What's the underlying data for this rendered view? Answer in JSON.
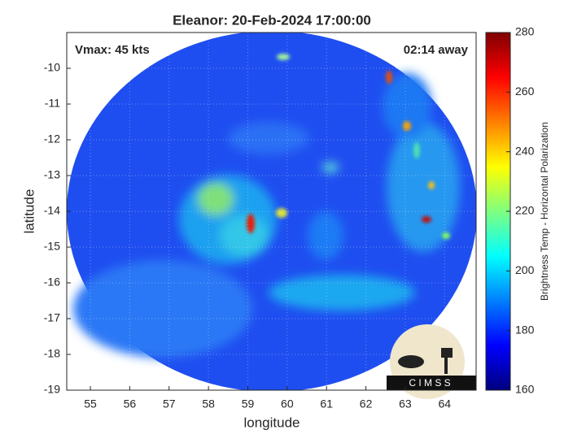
{
  "chart_data": {
    "type": "heatmap",
    "title": "Eleanor: 20-Feb-2024 17:00:00",
    "annotations": [
      "Vmax: 45 kts",
      "02:14 away"
    ],
    "x_label": "longitude",
    "y_label": "latitude",
    "xlim": [
      54.4,
      64.8
    ],
    "xticks": [
      55,
      56,
      57,
      58,
      59,
      60,
      61,
      62,
      63,
      64
    ],
    "ylim": [
      -19,
      -9
    ],
    "yticks": [
      -19,
      -18,
      -17,
      -16,
      -15,
      -14,
      -13,
      -12,
      -11,
      -10
    ],
    "grid": true,
    "colorbar": {
      "label": "Brightness Temp - Horizontal Polarization",
      "lim": [
        160,
        280
      ],
      "ticks": [
        160,
        180,
        200,
        220,
        240,
        260,
        280
      ],
      "colormap": "jet"
    },
    "logo_text": "C I M S S"
  }
}
